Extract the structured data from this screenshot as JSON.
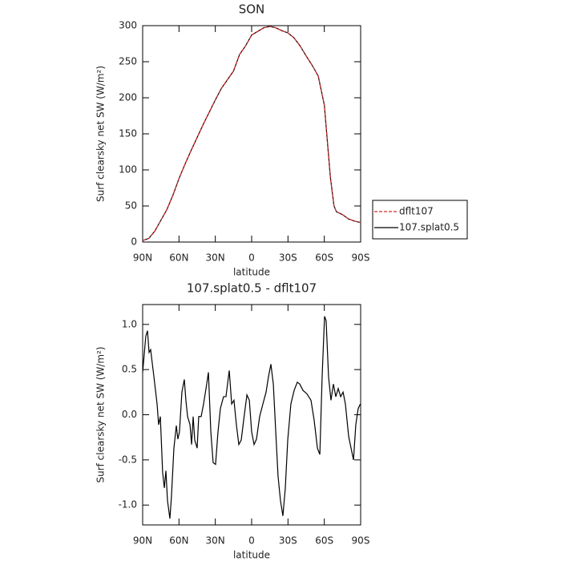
{
  "chart_data": [
    {
      "type": "line",
      "title": "SON",
      "xlabel": "latitude",
      "ylabel": "Surf clearsky net SW (W/m²)",
      "x": [
        90,
        85,
        80,
        75,
        70,
        65,
        60,
        55,
        50,
        45,
        40,
        35,
        30,
        25,
        20,
        15,
        10,
        5,
        0,
        -5,
        -10,
        -15,
        -20,
        -25,
        -30,
        -35,
        -40,
        -45,
        -50,
        -55,
        -60,
        -65,
        -68,
        -70,
        -75,
        -80,
        -85,
        -90
      ],
      "series": [
        {
          "name": "dflt107",
          "color": "#d62728",
          "dash": true,
          "values": [
            2,
            5,
            15,
            30,
            45,
            65,
            88,
            108,
            127,
            145,
            163,
            180,
            197,
            213,
            225,
            237,
            260,
            272,
            287,
            292,
            297,
            299,
            297,
            293,
            290,
            283,
            272,
            258,
            245,
            230,
            190,
            90,
            50,
            42,
            38,
            32,
            29,
            27
          ]
        },
        {
          "name": "107.splat0.5",
          "color": "#000000",
          "dash": false,
          "values": [
            2,
            5,
            15,
            30,
            45,
            65,
            88,
            108,
            127,
            145,
            163,
            180,
            197,
            213,
            225,
            237,
            260,
            272,
            287,
            292,
            297,
            299,
            297,
            293,
            290,
            283,
            272,
            258,
            245,
            230,
            190,
            90,
            50,
            42,
            38,
            32,
            29,
            27
          ]
        }
      ],
      "xlim": [
        90,
        -90
      ],
      "xticks": [
        {
          "value": 90,
          "label": "90N"
        },
        {
          "value": 60,
          "label": "60N"
        },
        {
          "value": 30,
          "label": "30N"
        },
        0,
        {
          "value": -30,
          "label": "30S"
        },
        {
          "value": -60,
          "label": "60S"
        },
        {
          "value": -90,
          "label": "90S"
        }
      ],
      "ylim": [
        0,
        300
      ],
      "yticks": [
        0,
        50,
        100,
        150,
        200,
        250,
        300
      ],
      "legend": "right"
    },
    {
      "type": "line",
      "title": "107.splat0.5 - dflt107",
      "xlabel": "latitude",
      "ylabel": "Surf clearsky net SW (W/m²)",
      "x": [
        90,
        87.4,
        86,
        84.7,
        83.4,
        80.7,
        78.1,
        76.8,
        75.4,
        73.5,
        72.1,
        70.8,
        69.5,
        67.5,
        66.2,
        64.2,
        62.2,
        60.9,
        59.6,
        57.6,
        55.6,
        54.3,
        52.9,
        50.9,
        49.6,
        48.3,
        47,
        45,
        43.7,
        41.7,
        39.7,
        37.1,
        35.7,
        33.7,
        31.8,
        29.8,
        27.8,
        25.8,
        23.2,
        21.2,
        18.5,
        16.5,
        14.6,
        12.6,
        10.6,
        8.6,
        6.6,
        3.9,
        1.9,
        0,
        -2,
        -4,
        -6.6,
        -9.3,
        -11.9,
        -13.9,
        -15.9,
        -17.9,
        -19.9,
        -21.8,
        -23.8,
        -25.8,
        -27.8,
        -29.8,
        -32.4,
        -35.1,
        -37.7,
        -39.7,
        -42.4,
        -45.7,
        -49,
        -51.6,
        -54.3,
        -56.3,
        -58.2,
        -60.2,
        -61.5,
        -63.5,
        -65.5,
        -67.5,
        -69.5,
        -71.5,
        -73.5,
        -75.5,
        -77.4,
        -80.1,
        -82.1,
        -84.1,
        -86,
        -88,
        -89.8
      ],
      "series": [
        {
          "name": null,
          "color": "#000000",
          "dash": false,
          "values": [
            0.47,
            0.87,
            0.93,
            0.69,
            0.72,
            0.42,
            0.12,
            -0.11,
            -0.02,
            -0.64,
            -0.81,
            -0.62,
            -0.95,
            -1.15,
            -0.9,
            -0.37,
            -0.12,
            -0.27,
            -0.19,
            0.25,
            0.39,
            0.16,
            -0.02,
            -0.11,
            -0.33,
            -0.02,
            -0.28,
            -0.37,
            -0.02,
            -0.02,
            0.12,
            0.34,
            0.47,
            -0.19,
            -0.53,
            -0.55,
            -0.19,
            0.07,
            0.2,
            0.2,
            0.49,
            0.12,
            0.16,
            -0.11,
            -0.33,
            -0.28,
            -0.06,
            0.22,
            0.16,
            -0.19,
            -0.33,
            -0.27,
            -0.02,
            0.12,
            0.25,
            0.42,
            0.56,
            0.34,
            -0.19,
            -0.68,
            -0.95,
            -1.12,
            -0.81,
            -0.28,
            0.12,
            0.27,
            0.36,
            0.34,
            0.27,
            0.23,
            0.16,
            -0.06,
            -0.37,
            -0.44,
            0.42,
            1.09,
            1.04,
            0.42,
            0.16,
            0.34,
            0.2,
            0.29,
            0.2,
            0.25,
            0.12,
            -0.24,
            -0.37,
            -0.5,
            -0.11,
            0.07,
            0.12
          ]
        }
      ],
      "xlim": [
        90,
        -90
      ],
      "xticks": [
        {
          "value": 90,
          "label": "90N"
        },
        {
          "value": 60,
          "label": "60N"
        },
        {
          "value": 30,
          "label": "30N"
        },
        0,
        {
          "value": -30,
          "label": "30S"
        },
        {
          "value": -60,
          "label": "60S"
        },
        {
          "value": -90,
          "label": "90S"
        }
      ],
      "ylim": [
        -1.22,
        1.22
      ],
      "yticks": [
        {
          "value": -1,
          "label": "-1.0"
        },
        {
          "value": -0.5,
          "label": "-0.5"
        },
        {
          "value": 0,
          "label": "0.0"
        },
        {
          "value": 0.5,
          "label": "0.5"
        },
        {
          "value": 1,
          "label": "1.0"
        }
      ]
    }
  ]
}
